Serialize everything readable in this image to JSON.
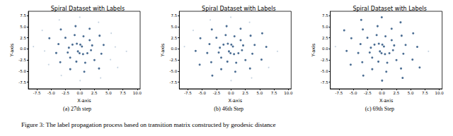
{
  "figure_caption": "Figure 3: The label propagation process based on transition matrix constructed by geodesic distance",
  "chart_data": [
    {
      "type": "scatter",
      "title": "Spiral Dataset with Labels",
      "xlabel": "X-axis",
      "ylabel": "Y-axis",
      "caption": "(a) 27th step",
      "xlim": [
        -9,
        10.5
      ],
      "ylim": [
        -9,
        8.5
      ],
      "xticks": [
        -7.5,
        {
          "value": -5,
          "label": "-5.0"
        },
        -2.5,
        {
          "value": 0,
          "label": "0.0"
        },
        2.5,
        {
          "value": 5,
          "label": "5.0"
        },
        7.5,
        {
          "value": 10,
          "label": "10.0"
        }
      ],
      "yticks": [
        -7.5,
        {
          "value": -5,
          "label": "-5.0"
        },
        -2.5,
        {
          "value": 0,
          "label": "0.0"
        },
        2.5,
        {
          "value": 5,
          "label": "5.0"
        },
        7.5
      ],
      "grid": false,
      "series": [
        {
          "color": "#b9c9da",
          "marker": "circle",
          "values": [
            [
              -6.16,
              -0.46
            ],
            [
              -5.45,
              -3.54
            ],
            [
              -3.25,
              -6.01
            ],
            [
              0.03,
              -7.15
            ],
            [
              3.61,
              -6.55
            ],
            [
              6.58,
              -4.19
            ],
            [
              8.11,
              -0.54
            ],
            [
              5.33,
              -2.41
            ],
            [
              6.16,
              0.46
            ],
            [
              5.45,
              3.54
            ],
            [
              3.25,
              6.01
            ],
            [
              -0.03,
              7.15
            ],
            [
              -3.61,
              6.55
            ],
            [
              -6.58,
              4.19
            ],
            [
              -8.11,
              0.54
            ]
          ]
        },
        {
          "color": "#1f4a78",
          "marker": "circle",
          "values": [
            [
              0.35,
              0.55
            ],
            [
              0.07,
              0.97
            ],
            [
              -0.54,
              1.18
            ],
            [
              -1.3,
              0.97
            ],
            [
              -1.93,
              0.28
            ],
            [
              -2.13,
              -0.8
            ],
            [
              -1.7,
              -1.97
            ],
            [
              -0.62,
              -2.86
            ],
            [
              0.92,
              -3.12
            ],
            [
              2.53,
              -2.52
            ],
            [
              3.74,
              -1.09
            ],
            [
              4.13,
              0.91
            ],
            [
              3.43,
              2.99
            ],
            [
              1.69,
              4.57
            ],
            [
              -0.76,
              5.14
            ],
            [
              -3.33,
              4.41
            ],
            [
              -5.33,
              2.41
            ],
            [
              -0.35,
              -0.55
            ],
            [
              -0.07,
              -0.97
            ],
            [
              0.54,
              -1.18
            ],
            [
              1.3,
              -0.97
            ],
            [
              1.93,
              -0.28
            ],
            [
              2.13,
              0.8
            ],
            [
              1.7,
              1.97
            ],
            [
              0.62,
              2.86
            ],
            [
              -0.92,
              3.12
            ],
            [
              -2.53,
              2.52
            ],
            [
              -3.74,
              1.09
            ],
            [
              -4.13,
              -0.91
            ],
            [
              -3.43,
              -2.99
            ],
            [
              -1.69,
              -4.57
            ],
            [
              0.76,
              -5.14
            ],
            [
              3.33,
              -4.41
            ]
          ]
        }
      ]
    },
    {
      "type": "scatter",
      "title": "Spiral Dataset with Labels",
      "xlabel": "X-axis",
      "ylabel": "Y-axis",
      "caption": "(b) 46th Step",
      "xlim": [
        -9,
        10.5
      ],
      "ylim": [
        -9,
        8.5
      ],
      "xticks": [
        -7.5,
        {
          "value": -5,
          "label": "-5.0"
        },
        -2.5,
        {
          "value": 0,
          "label": "0.0"
        },
        2.5,
        {
          "value": 5,
          "label": "5.0"
        },
        7.5,
        {
          "value": 10,
          "label": "10.0"
        }
      ],
      "yticks": [
        -7.5,
        {
          "value": -5,
          "label": "-5.0"
        },
        -2.5,
        {
          "value": 0,
          "label": "0.0"
        },
        2.5,
        {
          "value": 5,
          "label": "5.0"
        },
        7.5
      ],
      "grid": false,
      "series": [
        {
          "color": "#b9c9da",
          "marker": "circle",
          "values": [
            [
              0.03,
              -7.15
            ],
            [
              3.61,
              -6.55
            ],
            [
              6.58,
              -4.19
            ],
            [
              8.11,
              -0.54
            ],
            [
              3.25,
              6.01
            ],
            [
              -0.03,
              7.15
            ],
            [
              -3.61,
              6.55
            ],
            [
              -6.58,
              4.19
            ],
            [
              -8.11,
              0.54
            ]
          ]
        },
        {
          "color": "#1f4a78",
          "marker": "circle",
          "values": [
            [
              0.35,
              0.55
            ],
            [
              0.07,
              0.97
            ],
            [
              -0.54,
              1.18
            ],
            [
              -1.3,
              0.97
            ],
            [
              -1.93,
              0.28
            ],
            [
              -2.13,
              -0.8
            ],
            [
              -1.7,
              -1.97
            ],
            [
              -0.62,
              -2.86
            ],
            [
              0.92,
              -3.12
            ],
            [
              2.53,
              -2.52
            ],
            [
              3.74,
              -1.09
            ],
            [
              4.13,
              0.91
            ],
            [
              3.43,
              2.99
            ],
            [
              1.69,
              4.57
            ],
            [
              -0.76,
              5.14
            ],
            [
              -3.33,
              4.41
            ],
            [
              -5.33,
              2.41
            ],
            [
              -6.16,
              -0.46
            ],
            [
              -5.45,
              -3.54
            ],
            [
              -3.25,
              -6.01
            ],
            [
              -0.35,
              -0.55
            ],
            [
              -0.07,
              -0.97
            ],
            [
              0.54,
              -1.18
            ],
            [
              1.3,
              -0.97
            ],
            [
              1.93,
              -0.28
            ],
            [
              2.13,
              0.8
            ],
            [
              1.7,
              1.97
            ],
            [
              0.62,
              2.86
            ],
            [
              -0.92,
              3.12
            ],
            [
              -2.53,
              2.52
            ],
            [
              -3.74,
              1.09
            ],
            [
              -4.13,
              -0.91
            ],
            [
              -3.43,
              -2.99
            ],
            [
              -1.69,
              -4.57
            ],
            [
              0.76,
              -5.14
            ],
            [
              3.33,
              -4.41
            ],
            [
              5.33,
              -2.41
            ],
            [
              6.16,
              0.46
            ],
            [
              5.45,
              3.54
            ]
          ]
        }
      ]
    },
    {
      "type": "scatter",
      "title": "Spiral Dataset with Labels",
      "xlabel": "X-axis",
      "ylabel": "Y-axis",
      "caption": "(c) 69th Step",
      "xlim": [
        -9,
        10.5
      ],
      "ylim": [
        -9,
        8.5
      ],
      "xticks": [
        -7.5,
        {
          "value": -5,
          "label": "-5.0"
        },
        -2.5,
        {
          "value": 0,
          "label": "0.0"
        },
        2.5,
        {
          "value": 5,
          "label": "5.0"
        },
        7.5,
        {
          "value": 10,
          "label": "10.0"
        }
      ],
      "yticks": [
        -7.5,
        {
          "value": -5,
          "label": "-5.0"
        },
        -2.5,
        {
          "value": 0,
          "label": "0.0"
        },
        2.5,
        {
          "value": 5,
          "label": "5.0"
        },
        7.5
      ],
      "grid": false,
      "series": [
        {
          "color": "#b9c9da",
          "marker": "circle",
          "values": [
            [
              8.11,
              -0.54
            ],
            [
              -8.11,
              0.54
            ]
          ]
        },
        {
          "color": "#1f4a78",
          "marker": "circle",
          "values": [
            [
              0.35,
              0.55
            ],
            [
              0.07,
              0.97
            ],
            [
              -0.54,
              1.18
            ],
            [
              -1.3,
              0.97
            ],
            [
              -1.93,
              0.28
            ],
            [
              -2.13,
              -0.8
            ],
            [
              -1.7,
              -1.97
            ],
            [
              -0.62,
              -2.86
            ],
            [
              0.92,
              -3.12
            ],
            [
              2.53,
              -2.52
            ],
            [
              3.74,
              -1.09
            ],
            [
              4.13,
              0.91
            ],
            [
              3.43,
              2.99
            ],
            [
              1.69,
              4.57
            ],
            [
              -0.76,
              5.14
            ],
            [
              -3.33,
              4.41
            ],
            [
              -5.33,
              2.41
            ],
            [
              -6.16,
              -0.46
            ],
            [
              -5.45,
              -3.54
            ],
            [
              -3.25,
              -6.01
            ],
            [
              0.03,
              -7.15
            ],
            [
              3.61,
              -6.55
            ],
            [
              6.58,
              -4.19
            ],
            [
              -0.35,
              -0.55
            ],
            [
              -0.07,
              -0.97
            ],
            [
              0.54,
              -1.18
            ],
            [
              1.3,
              -0.97
            ],
            [
              1.93,
              -0.28
            ],
            [
              2.13,
              0.8
            ],
            [
              1.7,
              1.97
            ],
            [
              0.62,
              2.86
            ],
            [
              -0.92,
              3.12
            ],
            [
              -2.53,
              2.52
            ],
            [
              -3.74,
              1.09
            ],
            [
              -4.13,
              -0.91
            ],
            [
              -3.43,
              -2.99
            ],
            [
              -1.69,
              -4.57
            ],
            [
              0.76,
              -5.14
            ],
            [
              3.33,
              -4.41
            ],
            [
              5.33,
              -2.41
            ],
            [
              6.16,
              0.46
            ],
            [
              5.45,
              3.54
            ],
            [
              3.25,
              6.01
            ],
            [
              -0.03,
              7.15
            ],
            [
              -3.61,
              6.55
            ],
            [
              -6.58,
              4.19
            ]
          ]
        }
      ]
    }
  ]
}
